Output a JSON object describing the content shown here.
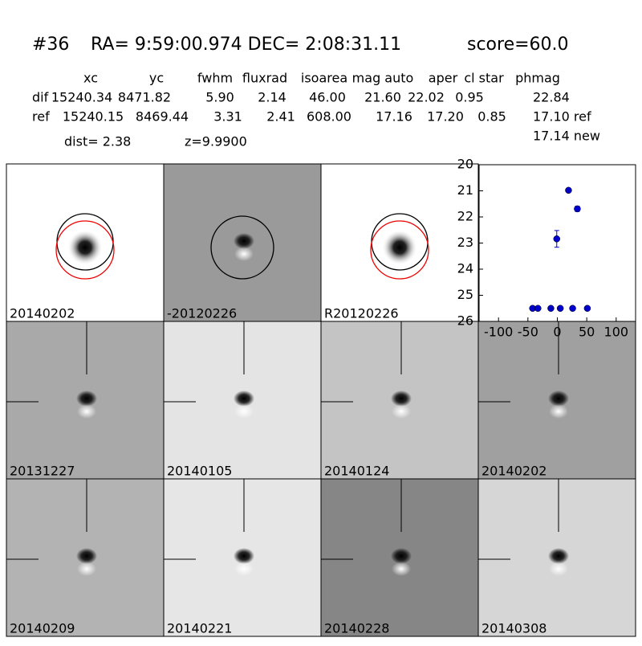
{
  "header": {
    "id": "#36",
    "coords": "RA= 9:59:00.974 DEC= 2:08:31.11",
    "score": "score=60.0"
  },
  "table": {
    "columns": [
      "xc",
      "yc",
      "fwhm",
      "fluxrad",
      "isoarea",
      "mag auto",
      "aper",
      "cl star",
      "phmag"
    ],
    "rows": [
      [
        "dif",
        "15240.34",
        "8471.82",
        "5.90",
        "2.14",
        "46.00",
        "21.60",
        "22.02",
        "0.95",
        "22.84"
      ],
      [
        "ref",
        "15240.15",
        "8469.44",
        "3.31",
        "2.41",
        "608.00",
        "17.16",
        "17.20",
        "0.85",
        "17.10 ref"
      ]
    ],
    "extra": "17.14 new"
  },
  "dist": "dist=  2.38",
  "z": "z=9.9900",
  "panels": [
    "20140202",
    "-20120226",
    "R20120226",
    "20131227",
    "20140105",
    "20140124",
    "20140202",
    "20140209",
    "20140221",
    "20140228",
    "20140308"
  ],
  "chart_data": {
    "type": "scatter",
    "color": "#0000cc",
    "x": [
      -42,
      -33,
      -11,
      5,
      26,
      51,
      -1,
      19,
      34
    ],
    "values": [
      25.5,
      25.5,
      25.5,
      25.5,
      25.5,
      25.5,
      22.84,
      20.98,
      21.69
    ],
    "errors": [
      null,
      null,
      null,
      null,
      null,
      null,
      0.32,
      null,
      0.1
    ],
    "xlim": [
      -133,
      133
    ],
    "ylim": [
      26,
      20
    ],
    "xticks": [
      -100,
      -50,
      0,
      50,
      100
    ],
    "yticks": [
      20,
      21,
      22,
      23,
      24,
      25,
      26
    ]
  }
}
